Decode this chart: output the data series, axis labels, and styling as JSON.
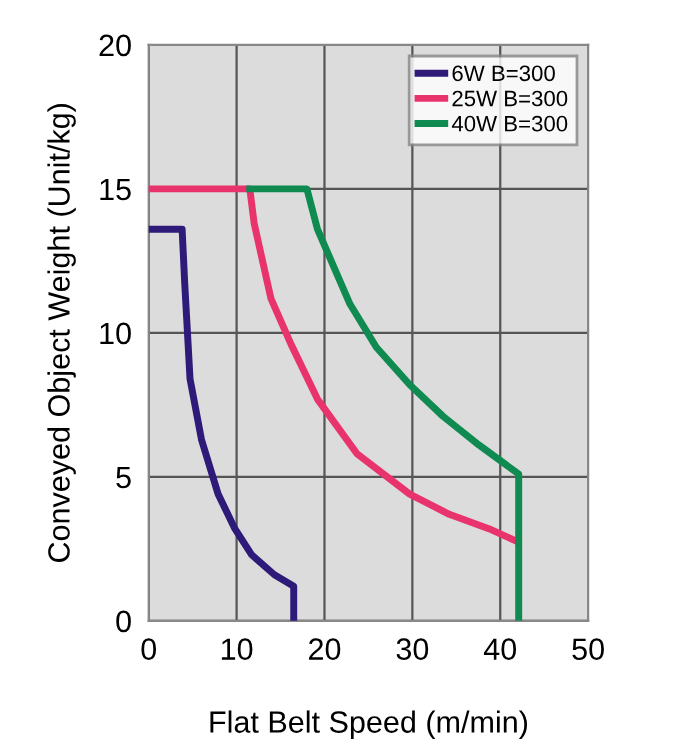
{
  "chart_data": {
    "type": "line",
    "xlabel": "Flat Belt Speed (m/min)",
    "ylabel": "Conveyed Object Weight (Unit/kg)",
    "xlim": [
      0,
      50
    ],
    "ylim": [
      0,
      20
    ],
    "xticks": [
      0,
      10,
      20,
      30,
      40,
      50
    ],
    "yticks": [
      0,
      5,
      10,
      15,
      20
    ],
    "grid": true,
    "legend": "top right",
    "marker": "none",
    "line_style": "solid",
    "series": [
      {
        "name": "6W B=300",
        "color": "#2e1a78",
        "x": [
          0,
          3.8,
          4.1,
          4.7,
          6.0,
          7.9,
          9.8,
          11.7,
          14.3,
          16.5,
          16.5
        ],
        "values": [
          13.6,
          13.6,
          11.7,
          8.4,
          6.3,
          4.4,
          3.2,
          2.3,
          1.6,
          1.2,
          0
        ]
      },
      {
        "name": "25W B=300",
        "color": "#e8336d",
        "x": [
          0,
          11.5,
          12.0,
          13.9,
          16.2,
          19.2,
          23.7,
          29.7,
          34.2,
          38.7,
          41.6
        ],
        "values": [
          15,
          15,
          13.8,
          11.2,
          9.6,
          7.7,
          5.8,
          4.4,
          3.7,
          3.2,
          2.8
        ]
      },
      {
        "name": "40W B=300",
        "color": "#0f8a50",
        "x": [
          11.5,
          18.0,
          19.2,
          22.9,
          25.9,
          29.7,
          33.5,
          37.6,
          42.1,
          42.1
        ],
        "values": [
          15,
          15,
          13.6,
          11.0,
          9.5,
          8.2,
          7.1,
          6.1,
          5.1,
          0
        ]
      }
    ]
  }
}
